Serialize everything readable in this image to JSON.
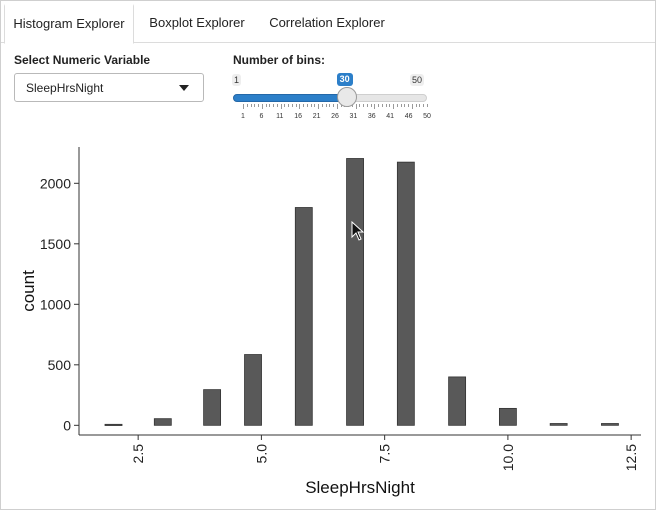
{
  "tabs": [
    {
      "label": "Histogram Explorer",
      "active": true
    },
    {
      "label": "Boxplot Explorer",
      "active": false
    },
    {
      "label": "Correlation Explorer",
      "active": false
    }
  ],
  "variable_select": {
    "label": "Select Numeric Variable",
    "value": "SleepHrsNight"
  },
  "bins_slider": {
    "label": "Number of bins:",
    "min": 1,
    "max": 50,
    "value": 30,
    "min_label": "1",
    "max_label": "50",
    "value_label": "30",
    "tick_labels": [
      "1",
      "6",
      "11",
      "16",
      "21",
      "26",
      "31",
      "36",
      "41",
      "46",
      "50"
    ],
    "fill_fraction": 0.592,
    "accent_color": "#2c7fc9"
  },
  "chart_data": {
    "type": "bar",
    "xlabel": "SleepHrsNight",
    "ylabel": "count",
    "xlim": [
      1.3,
      12.7
    ],
    "ylim": [
      -80,
      2300
    ],
    "x_ticks": [
      2.5,
      5.0,
      7.5,
      10.0,
      12.5
    ],
    "x_tick_labels": [
      "2.5",
      "5.0",
      "7.5",
      "10.0",
      "12.5"
    ],
    "y_ticks": [
      0,
      500,
      1000,
      1500,
      2000
    ],
    "y_tick_labels": [
      "0",
      "500",
      "1000",
      "1500",
      "2000"
    ],
    "bin_width": 0.345,
    "bar_color": "#595959",
    "bars": [
      {
        "x": 2.0,
        "count": 8
      },
      {
        "x": 3.0,
        "count": 55
      },
      {
        "x": 4.0,
        "count": 295
      },
      {
        "x": 4.83,
        "count": 585
      },
      {
        "x": 5.86,
        "count": 1800
      },
      {
        "x": 6.9,
        "count": 2205
      },
      {
        "x": 7.93,
        "count": 2175
      },
      {
        "x": 8.97,
        "count": 400
      },
      {
        "x": 10.0,
        "count": 140
      },
      {
        "x": 11.03,
        "count": 15
      },
      {
        "x": 12.07,
        "count": 15
      }
    ]
  }
}
